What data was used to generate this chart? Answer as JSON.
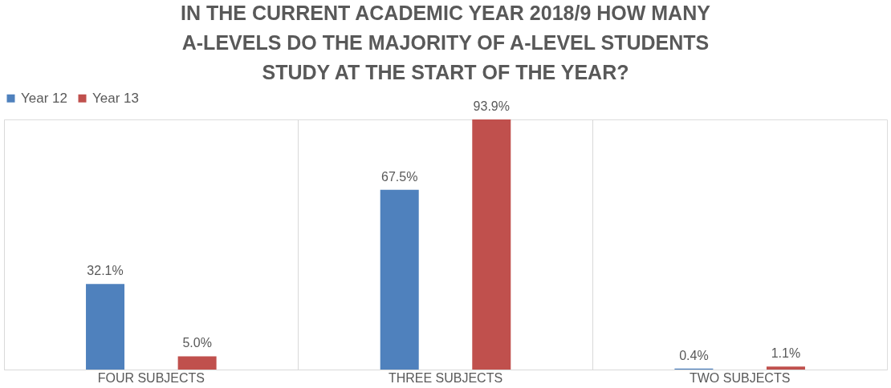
{
  "chart_data": {
    "type": "bar",
    "title": "IN THE CURRENT ACADEMIC YEAR 2018/9 HOW MANY A-LEVELS DO THE MAJORITY OF A-LEVEL STUDENTS STUDY AT THE START OF THE YEAR?",
    "categories": [
      "FOUR SUBJECTS",
      "THREE SUBJECTS",
      "TWO SUBJECTS"
    ],
    "series": [
      {
        "name": "Year 12",
        "color": "#4f81bd",
        "values": [
          32.1,
          67.5,
          0.4
        ],
        "value_labels": [
          "32.1%",
          "67.5%",
          "0.4%"
        ]
      },
      {
        "name": "Year 13",
        "color": "#c0504d",
        "values": [
          5.0,
          93.9,
          1.1
        ],
        "value_labels": [
          "5.0%",
          "93.9%",
          "1.1%"
        ]
      }
    ],
    "legend": "top",
    "grid": "x"
  }
}
